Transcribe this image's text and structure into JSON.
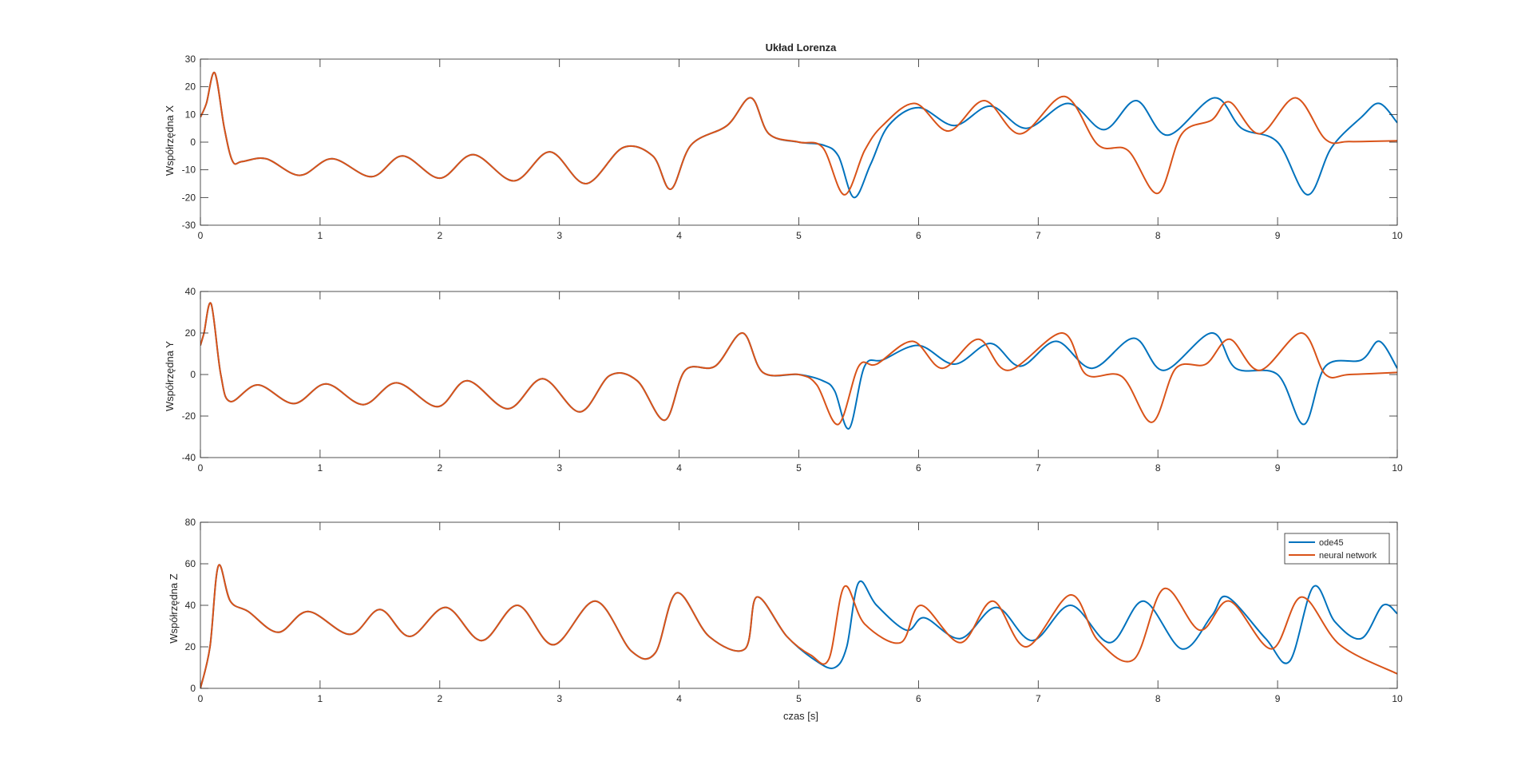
{
  "title": "Układ Lorenza",
  "xlabel": "czas [s]",
  "colors": {
    "ode45": "#0072BD",
    "nn": "#D95319",
    "axis": "#262626",
    "background": "#ffffff"
  },
  "chart_data": [
    {
      "type": "line",
      "title": "Układ Lorenza",
      "ylabel": "Współrzędna X",
      "xlabel": "",
      "xlim": [
        0,
        10
      ],
      "ylim": [
        -30,
        30
      ],
      "xticks": [
        0,
        1,
        2,
        3,
        4,
        5,
        6,
        7,
        8,
        9,
        10
      ],
      "yticks": [
        -30,
        -20,
        -10,
        0,
        10,
        20,
        30
      ],
      "grid": false,
      "series": [
        {
          "name": "ode45",
          "color": "#0072BD",
          "x": [
            0,
            0.05,
            0.12,
            0.2,
            0.27,
            0.35,
            0.55,
            0.83,
            1.1,
            1.43,
            1.69,
            2.0,
            2.28,
            2.62,
            2.92,
            3.22,
            3.53,
            3.78,
            3.93,
            4.1,
            4.4,
            4.6,
            4.75,
            5.0,
            5.2,
            5.33,
            5.46,
            5.6,
            5.75,
            6.0,
            6.3,
            6.6,
            6.9,
            7.25,
            7.55,
            7.82,
            8.08,
            8.47,
            8.7,
            9.0,
            9.25,
            9.45,
            9.7,
            9.85,
            10
          ],
          "y": [
            9,
            14,
            25,
            5,
            -7,
            -7,
            -6,
            -12,
            -6,
            -12.5,
            -5,
            -13,
            -4.5,
            -14,
            -3.5,
            -15,
            -2,
            -5,
            -17,
            -1,
            6,
            16,
            3,
            0,
            -1,
            -5,
            -20,
            -8,
            6,
            12.5,
            6,
            13,
            5,
            14,
            4.5,
            15,
            2.5,
            16,
            5,
            0,
            -19,
            -2,
            9,
            14,
            7
          ]
        },
        {
          "name": "neural network",
          "color": "#D95319",
          "x": [
            0,
            0.05,
            0.12,
            0.2,
            0.27,
            0.35,
            0.55,
            0.83,
            1.1,
            1.43,
            1.69,
            2.0,
            2.28,
            2.62,
            2.92,
            3.22,
            3.53,
            3.78,
            3.93,
            4.1,
            4.4,
            4.6,
            4.75,
            5.0,
            5.2,
            5.38,
            5.55,
            5.7,
            5.97,
            6.25,
            6.55,
            6.85,
            7.22,
            7.5,
            7.75,
            8.0,
            8.2,
            8.45,
            8.6,
            8.85,
            9.15,
            9.4,
            9.6,
            10
          ],
          "y": [
            9,
            14,
            25,
            5,
            -7,
            -7,
            -6,
            -12,
            -6,
            -12.5,
            -5,
            -13,
            -4.5,
            -14,
            -3.5,
            -15,
            -2,
            -5,
            -17,
            -1,
            6,
            16,
            3,
            0,
            -2,
            -19,
            -3,
            6,
            14,
            4,
            15,
            3,
            16.5,
            -1,
            -3,
            -18.5,
            3,
            8,
            14.5,
            3,
            16,
            1,
            0.2,
            0.5
          ]
        }
      ]
    },
    {
      "type": "line",
      "title": "",
      "ylabel": "Współrzędna Y",
      "xlabel": "",
      "xlim": [
        0,
        10
      ],
      "ylim": [
        -40,
        40
      ],
      "xticks": [
        0,
        1,
        2,
        3,
        4,
        5,
        6,
        7,
        8,
        9,
        10
      ],
      "yticks": [
        -40,
        -20,
        0,
        20,
        40
      ],
      "grid": false,
      "series": [
        {
          "name": "ode45",
          "color": "#0072BD",
          "x": [
            0,
            0.03,
            0.09,
            0.17,
            0.25,
            0.48,
            0.78,
            1.05,
            1.36,
            1.64,
            1.98,
            2.23,
            2.57,
            2.86,
            3.17,
            3.42,
            3.65,
            3.88,
            4.05,
            4.3,
            4.53,
            4.7,
            5.0,
            5.2,
            5.3,
            5.42,
            5.55,
            5.7,
            6.0,
            6.3,
            6.6,
            6.85,
            7.15,
            7.45,
            7.8,
            8.05,
            8.45,
            8.65,
            9.0,
            9.22,
            9.4,
            9.7,
            9.85,
            10
          ],
          "y": [
            14,
            20,
            34,
            0,
            -13,
            -5,
            -14,
            -4.5,
            -14.5,
            -4,
            -15.5,
            -3,
            -16.5,
            -2,
            -18,
            -0.5,
            -3,
            -22,
            2,
            4,
            20,
            1,
            0,
            -3,
            -8,
            -26,
            4,
            7,
            14,
            5,
            15,
            4,
            16,
            3,
            17.5,
            2,
            20,
            3,
            0,
            -24,
            4,
            7,
            16,
            3
          ]
        },
        {
          "name": "neural network",
          "color": "#D95319",
          "x": [
            0,
            0.03,
            0.09,
            0.17,
            0.25,
            0.48,
            0.78,
            1.05,
            1.36,
            1.64,
            1.98,
            2.23,
            2.57,
            2.86,
            3.17,
            3.42,
            3.65,
            3.88,
            4.05,
            4.3,
            4.53,
            4.7,
            5.0,
            5.15,
            5.33,
            5.5,
            5.65,
            5.95,
            6.2,
            6.5,
            6.75,
            7.2,
            7.4,
            7.7,
            7.95,
            8.15,
            8.4,
            8.6,
            8.85,
            9.2,
            9.4,
            9.6,
            10
          ],
          "y": [
            14,
            20,
            34,
            0,
            -13,
            -5,
            -14,
            -4.5,
            -14.5,
            -4,
            -15.5,
            -3,
            -16.5,
            -2,
            -18,
            -0.5,
            -3,
            -22,
            2,
            4,
            20,
            1,
            0,
            -5,
            -24,
            4,
            5,
            16,
            3,
            17,
            2,
            20,
            0,
            -1,
            -23,
            3,
            5,
            17,
            2,
            20,
            0,
            0,
            1
          ]
        }
      ]
    },
    {
      "type": "line",
      "title": "",
      "ylabel": "Współrzędna Z",
      "xlabel": "czas [s]",
      "xlim": [
        0,
        10
      ],
      "ylim": [
        0,
        80
      ],
      "xticks": [
        0,
        1,
        2,
        3,
        4,
        5,
        6,
        7,
        8,
        9,
        10
      ],
      "yticks": [
        0,
        20,
        40,
        60,
        80
      ],
      "grid": false,
      "legend": {
        "location": "top-right",
        "entries": [
          "ode45",
          "neural network"
        ]
      },
      "series": [
        {
          "name": "ode45",
          "color": "#0072BD",
          "x": [
            0,
            0.08,
            0.15,
            0.25,
            0.4,
            0.65,
            0.9,
            1.25,
            1.5,
            1.75,
            2.05,
            2.35,
            2.65,
            2.95,
            3.3,
            3.6,
            3.8,
            3.98,
            4.25,
            4.55,
            4.65,
            4.9,
            5.15,
            5.3,
            5.4,
            5.5,
            5.65,
            5.9,
            6.05,
            6.35,
            6.65,
            6.95,
            7.27,
            7.6,
            7.88,
            8.2,
            8.45,
            8.58,
            8.9,
            9.1,
            9.3,
            9.48,
            9.7,
            9.88,
            10
          ],
          "y": [
            0,
            20,
            59,
            42,
            37,
            27,
            37,
            26,
            38,
            25,
            39,
            23,
            40,
            21,
            42,
            18,
            17,
            46,
            25,
            19,
            44,
            25,
            13,
            10,
            20,
            51,
            40,
            28,
            34,
            24,
            39,
            23,
            40,
            22,
            42,
            19,
            35,
            44,
            24,
            13,
            49,
            32,
            24,
            40,
            36
          ]
        },
        {
          "name": "neural network",
          "color": "#D95319",
          "x": [
            0,
            0.08,
            0.15,
            0.25,
            0.4,
            0.65,
            0.9,
            1.25,
            1.5,
            1.75,
            2.05,
            2.35,
            2.65,
            2.95,
            3.3,
            3.6,
            3.8,
            3.98,
            4.25,
            4.55,
            4.65,
            4.9,
            5.1,
            5.25,
            5.38,
            5.55,
            5.85,
            6.02,
            6.35,
            6.62,
            6.9,
            7.27,
            7.5,
            7.8,
            8.05,
            8.35,
            8.6,
            8.95,
            9.2,
            9.52,
            10
          ],
          "y": [
            0,
            20,
            59,
            42,
            37,
            27,
            37,
            26,
            38,
            25,
            39,
            23,
            40,
            21,
            42,
            18,
            17,
            46,
            25,
            19,
            44,
            25,
            16,
            14,
            49,
            31,
            22,
            40,
            22,
            42,
            20,
            45,
            23,
            14,
            48,
            28,
            42,
            19,
            44,
            21,
            7
          ]
        }
      ]
    }
  ]
}
